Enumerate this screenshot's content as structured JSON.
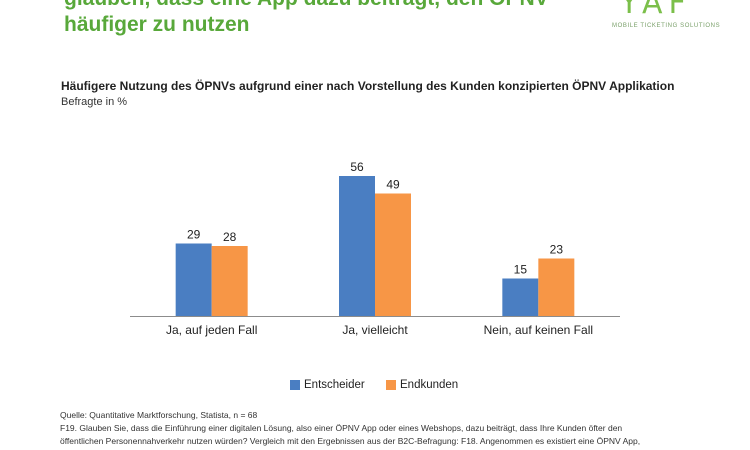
{
  "headline": {
    "line1": "glauben, dass eine App dazu beiträgt, den ÖPNV",
    "line2": "häufiger zu nutzen"
  },
  "logo": {
    "mark": "YAF",
    "subtitle": "MOBILE TICKETING SOLUTIONS"
  },
  "colors": {
    "headline": "#58a83a",
    "entscheider": "#4a7ec2",
    "endkunden": "#f79646"
  },
  "chart_data": {
    "type": "bar",
    "title": "Häufigere Nutzung des ÖPNVs aufgrund einer nach Vorstellung des Kunden konzipierten ÖPNV Applikation",
    "subtitle": "Befragte in %",
    "categories": [
      "Ja, auf jeden Fall",
      "Ja, vielleicht",
      "Nein, auf keinen Fall"
    ],
    "series": [
      {
        "name": "Entscheider",
        "values": [
          29,
          56,
          15
        ],
        "color": "#4a7ec2"
      },
      {
        "name": "Endkunden",
        "values": [
          28,
          49,
          23
        ],
        "color": "#f79646"
      }
    ],
    "xlabel": "",
    "ylabel": "",
    "ylim": [
      0,
      60
    ],
    "grid": false,
    "data_labels": true,
    "legend_position": "bottom"
  },
  "footnote": {
    "source": "Quelle: Quantitative Marktforschung, Statista, n = 68",
    "line1": "F19. Glauben Sie, dass die Einführung einer digitalen Lösung, also einer ÖPNV App oder eines Webshops, dazu beiträgt, dass Ihre Kunden öfter den",
    "line2": "öffentlichen Personennahverkehr nutzen würden? Vergleich mit den Ergebnissen aus der B2C-Befragung: F18. Angenommen es existiert eine ÖPNV App,"
  }
}
